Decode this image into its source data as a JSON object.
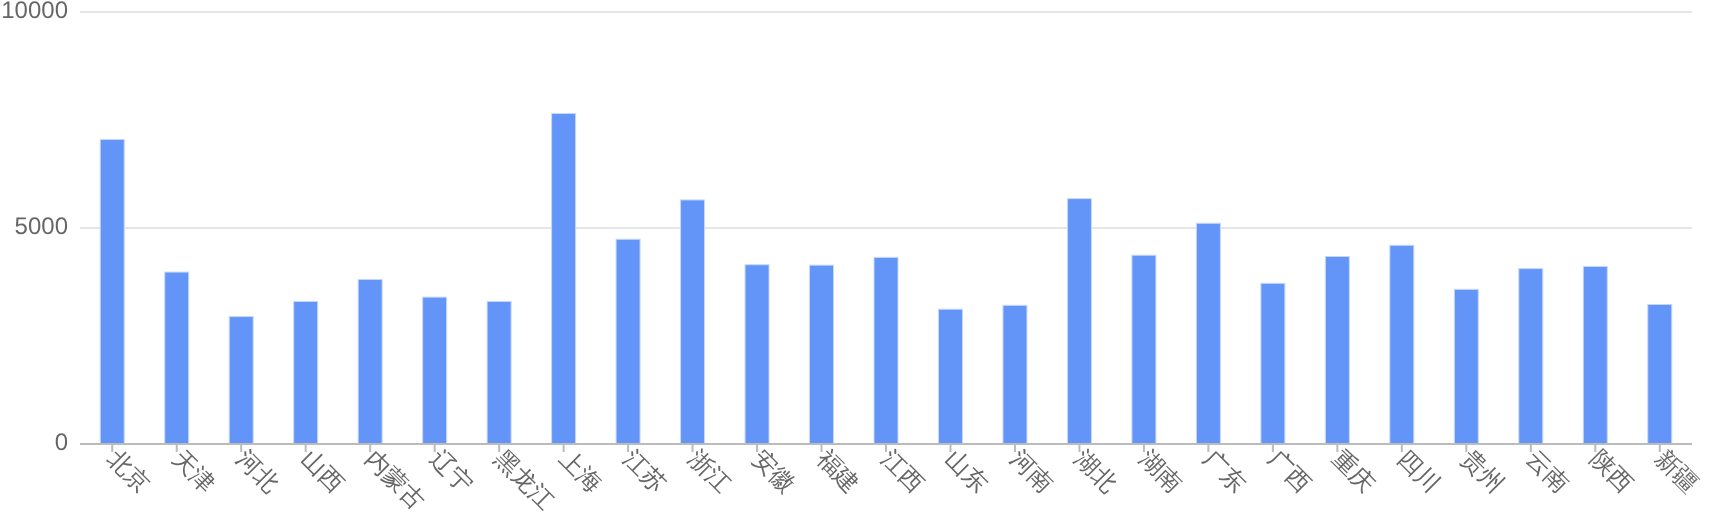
{
  "chart_data": {
    "type": "bar",
    "categories": [
      "北京",
      "天津",
      "河北",
      "山西",
      "内蒙古",
      "辽宁",
      "黑龙江",
      "上海",
      "江苏",
      "浙江",
      "安徽",
      "福建",
      "江西",
      "山东",
      "河南",
      "湖北",
      "湖南",
      "广东",
      "广西",
      "重庆",
      "四川",
      "贵州",
      "云南",
      "陕西",
      "新疆"
    ],
    "values": [
      7050,
      3980,
      2950,
      3300,
      3810,
      3400,
      3300,
      7650,
      4740,
      5650,
      4150,
      4140,
      4320,
      3120,
      3210,
      5680,
      4370,
      5110,
      3720,
      4340,
      4600,
      3580,
      4060,
      4110,
      3230
    ],
    "color": "#6395f9",
    "ylim": [
      0,
      10000
    ],
    "yticks": [
      0,
      5000,
      10000
    ],
    "grid": "y"
  }
}
